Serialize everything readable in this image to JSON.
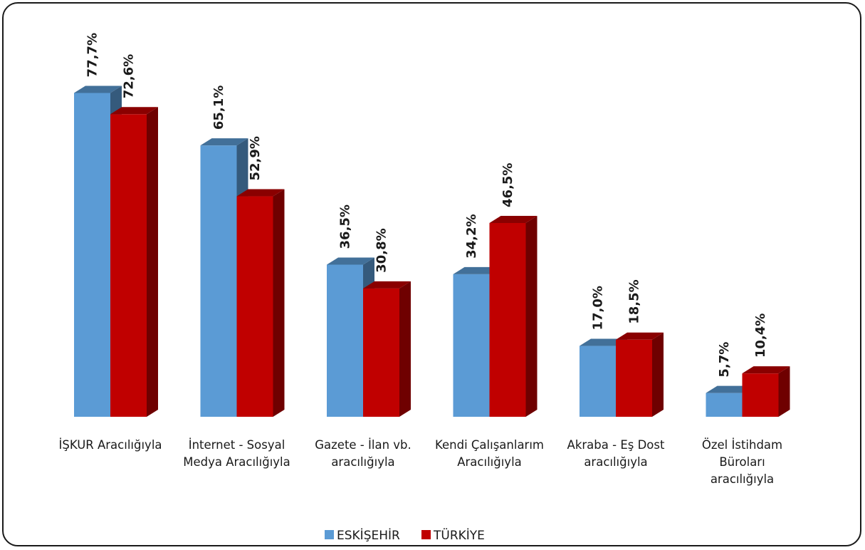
{
  "chart_data": {
    "type": "bar",
    "categories": [
      "İŞKUR Aracılığıyla",
      "İnternet - Sosyal Medya Aracılığıyla",
      "Gazete - İlan vb. aracılığıyla",
      "Kendi Çalışanlarım Aracılığıyla",
      "Akraba - Eş Dost aracılığıyla",
      "Özel İstihdam Büroları aracılığıyla"
    ],
    "category_lines": [
      [
        "İŞKUR Aracılığıyla"
      ],
      [
        "İnternet - Sosyal",
        "Medya Aracılığıyla"
      ],
      [
        "Gazete - İlan vb.",
        "aracılığıyla"
      ],
      [
        "Kendi Çalışanlarım",
        "Aracılığıyla"
      ],
      [
        "Akraba - Eş Dost",
        "aracılığıyla"
      ],
      [
        "Özel İstihdam",
        "Büroları",
        "aracılığıyla"
      ]
    ],
    "series": [
      {
        "name": "ESKİŞEHİR",
        "values": [
          77.7,
          65.1,
          36.5,
          34.2,
          17.0,
          5.7
        ],
        "labels": [
          "77,7%",
          "65,1%",
          "36,5%",
          "34,2%",
          "17,0%",
          "5,7%"
        ],
        "color": "#5b9bd5"
      },
      {
        "name": "TÜRKİYE",
        "values": [
          72.6,
          52.9,
          30.8,
          46.5,
          18.5,
          10.4
        ],
        "labels": [
          "72,6%",
          "52,9%",
          "30,8%",
          "46,5%",
          "18,5%",
          "10,4%"
        ],
        "color": "#c00000"
      }
    ],
    "unit": "%",
    "ylim": [
      0,
      80
    ],
    "grid": false,
    "legend_position": "bottom",
    "style": "3d-bar"
  }
}
